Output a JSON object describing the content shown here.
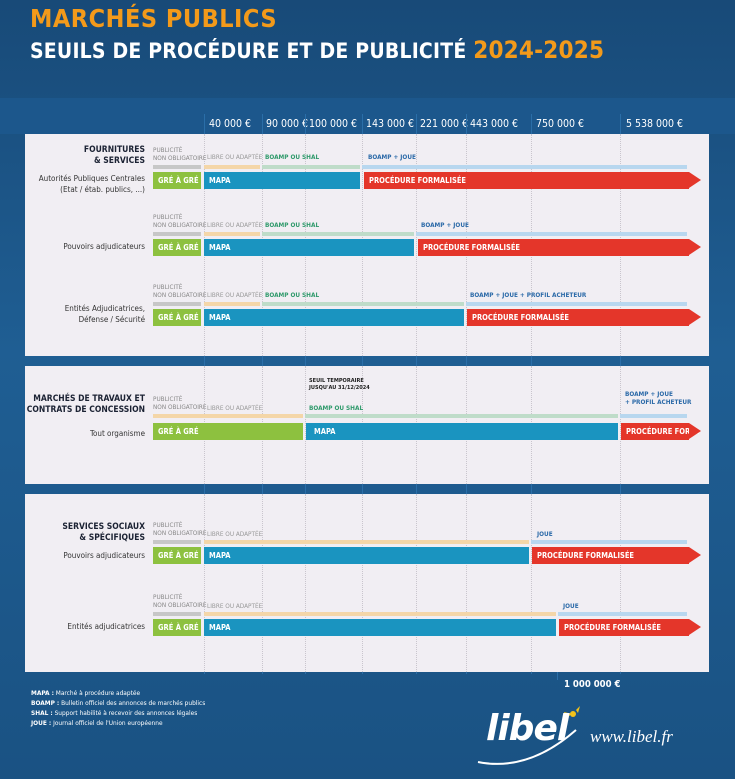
{
  "header": {
    "title": "MARCHÉS PUBLICS",
    "subtitle": "SEUILS DE PROCÉDURE ET DE PUBLICITÉ",
    "year": "2024-2025"
  },
  "thresholds": [
    "40 000 €",
    "90 000 €",
    "100 000 €",
    "143 000 €",
    "221 000 €",
    "443 000 €",
    "750 000 €",
    "5 538 000 €"
  ],
  "labels": {
    "publicite_na": "PUBLICITÉ\nNON OBLIGATOIRE",
    "libre": "LIBRE OU ADAPTÉE",
    "boamp_shal": "BOAMP OU SHAL",
    "boamp_joue": "BOAMP + JOUE",
    "boamp_joue_profil": "BOAMP + JOUE + PROFIL ACHETEUR",
    "boamp_joue_profil_2": "BOAMP + JOUE\n+ PROFIL ACHETEUR",
    "joue": "JOUE",
    "gre": "GRÉ À GRÉ",
    "mapa": "MAPA",
    "formalisee": "PROCÉDURE FORMALISÉE",
    "form_short": "PROCÉDURE FORM.",
    "seuil_temp": "SEUIL TEMPORAIRE\nJUSQU'AU 31/12/2024"
  },
  "sections": {
    "fournitures": {
      "title": "FOURNITURES\n& SERVICES",
      "rows": [
        "Autorités Publiques Centrales\n(Etat / étab. publics, ...)",
        "Pouvoirs adjudicateurs",
        "Entités Adjudicatrices,\nDéfense / Sécurité"
      ]
    },
    "travaux": {
      "title": "MARCHÉS DE TRAVAUX ET\nCONTRATS DE CONCESSION",
      "rows": [
        "Tout organisme"
      ]
    },
    "sociaux": {
      "title": "SERVICES SOCIAUX\n& SPÉCIFIQUES",
      "rows": [
        "Pouvoirs adjudicateurs",
        "Entités adjudicatrices"
      ]
    }
  },
  "million": "1 000 000 €",
  "legend": [
    {
      "abbr": "MAPA :",
      "text": "Marché à procédure adaptée"
    },
    {
      "abbr": "BOAMP :",
      "text": "Bulletin officiel des annonces de marchés publics"
    },
    {
      "abbr": "SHAL :",
      "text": "Support habilité à recevoir des annonces légales"
    },
    {
      "abbr": "JOUE :",
      "text": "Journal officiel de l'Union européenne"
    }
  ],
  "brand": {
    "name": "libel",
    "url": "www.libel.fr"
  },
  "colors": {
    "orange": "#f39a1a",
    "green": "#8dc13f",
    "blue": "#1a94c0",
    "red": "#e4362a",
    "panel": "#f1eef3"
  }
}
